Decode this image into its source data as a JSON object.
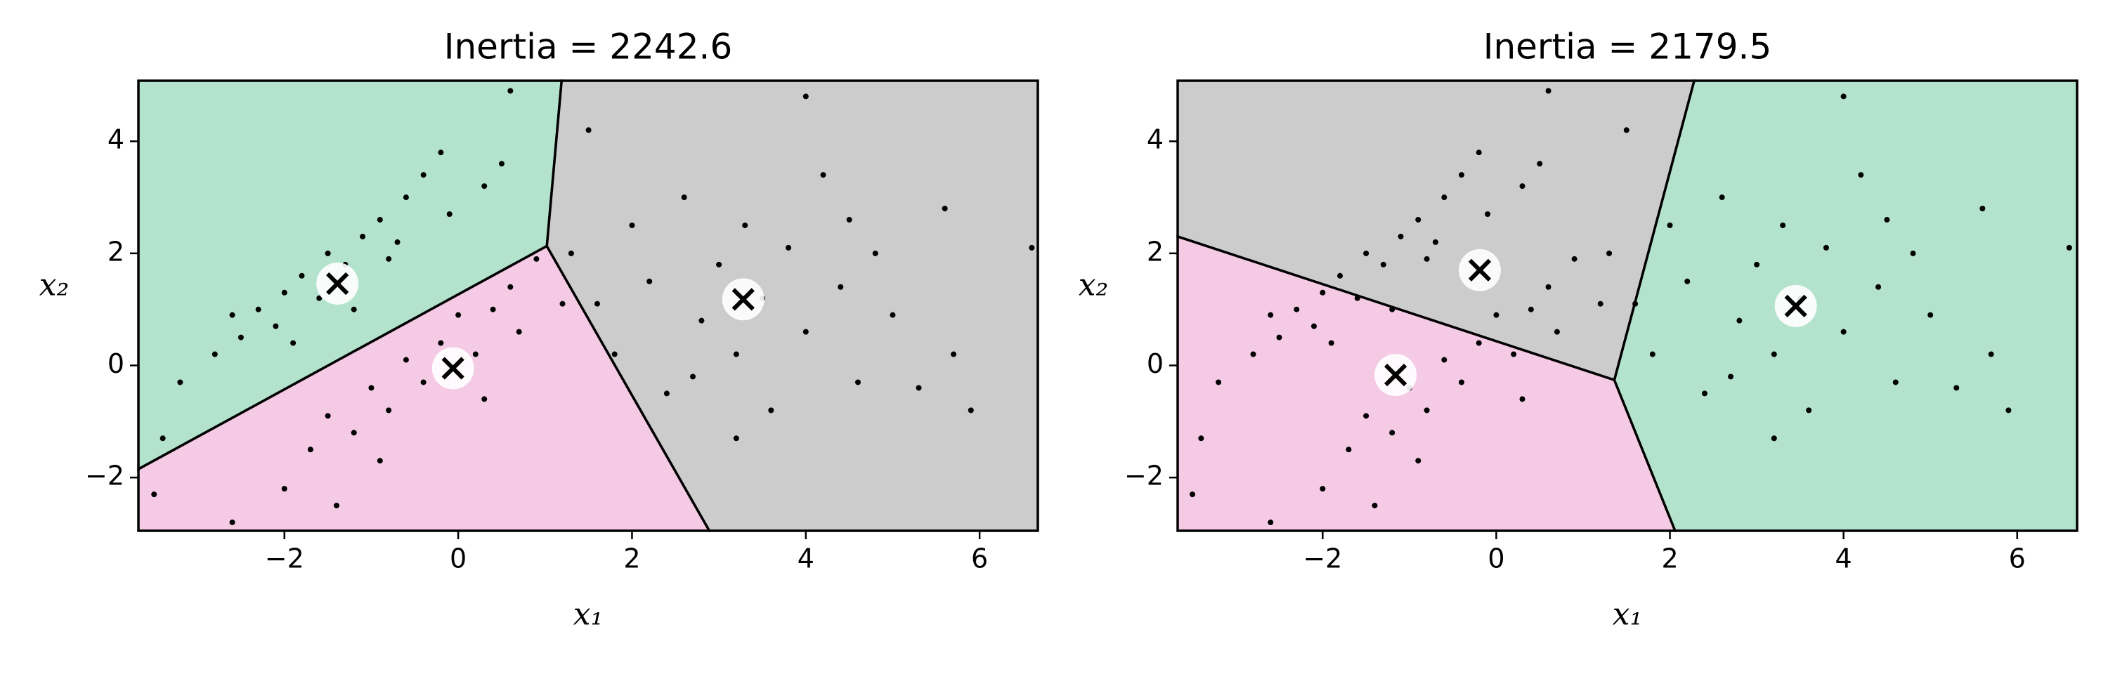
{
  "chart_data": [
    {
      "type": "scatter",
      "title": "Inertia = 2242.6",
      "xlabel": "x₁",
      "ylabel": "x₂",
      "xlim": [
        -3.68,
        6.67
      ],
      "ylim": [
        -2.95,
        5.08
      ],
      "xticks": [
        {
          "value": -2,
          "label": "−2"
        },
        0,
        2,
        4,
        6
      ],
      "yticks": [
        {
          "value": -2,
          "label": "−2"
        },
        0,
        2,
        4
      ],
      "regions": [
        {
          "color": "#b3e2cd",
          "polygon": [
            [
              -3.68,
              5.08
            ],
            [
              1.19,
              5.08
            ],
            [
              1.02,
              2.13
            ],
            [
              -3.68,
              -1.85
            ]
          ]
        },
        {
          "color": "#f4cae4",
          "polygon": [
            [
              -3.68,
              -1.85
            ],
            [
              1.02,
              2.13
            ],
            [
              2.89,
              -2.95
            ],
            [
              -3.68,
              -2.95
            ]
          ]
        },
        {
          "color": "#cccccc",
          "polygon": [
            [
              1.19,
              5.08
            ],
            [
              6.67,
              5.08
            ],
            [
              6.67,
              -2.95
            ],
            [
              2.89,
              -2.95
            ],
            [
              1.02,
              2.13
            ]
          ]
        }
      ],
      "points": {
        "color": "#000000",
        "x": [
          -3.2,
          -2.8,
          -2.5,
          -2.3,
          -2.1,
          -2.0,
          -1.8,
          -1.6,
          -1.5,
          -1.3,
          -1.1,
          -0.9,
          -0.7,
          -0.6,
          -0.4,
          -0.2,
          0.3,
          0.5,
          -2.6,
          -1.9,
          -1.2,
          -0.8,
          -3.4,
          -0.1,
          0.6,
          -2.6,
          -2.0,
          -1.7,
          -1.5,
          -1.2,
          -1.0,
          -0.8,
          -0.6,
          -0.4,
          -0.2,
          0.0,
          0.2,
          0.4,
          0.6,
          0.7,
          0.9,
          -1.4,
          -0.9,
          0.3,
          1.2,
          -3.5,
          1.3,
          1.6,
          1.8,
          2.0,
          2.2,
          2.4,
          2.6,
          2.8,
          3.0,
          3.2,
          3.3,
          3.5,
          3.6,
          3.8,
          4.0,
          4.2,
          4.4,
          4.6,
          4.8,
          5.0,
          5.3,
          5.6,
          5.7,
          5.9,
          6.6,
          4.0,
          1.5,
          3.2,
          2.7,
          4.5
        ],
        "y": [
          -0.3,
          0.2,
          0.5,
          1.0,
          0.7,
          1.3,
          1.6,
          1.2,
          2.0,
          1.8,
          2.3,
          2.6,
          2.2,
          3.0,
          3.4,
          3.8,
          3.2,
          3.6,
          0.9,
          0.4,
          1.0,
          1.9,
          -1.3,
          2.7,
          4.9,
          -2.8,
          -2.2,
          -1.5,
          -0.9,
          -1.2,
          -0.4,
          -0.8,
          0.1,
          -0.3,
          0.4,
          0.9,
          0.2,
          1.0,
          1.4,
          0.6,
          1.9,
          -2.5,
          -1.7,
          -0.6,
          1.1,
          -2.3,
          2.0,
          1.1,
          0.2,
          2.5,
          1.5,
          -0.5,
          3.0,
          0.8,
          1.8,
          0.2,
          2.5,
          1.2,
          -0.8,
          2.1,
          0.6,
          3.4,
          1.4,
          -0.3,
          2.0,
          0.9,
          -0.4,
          2.8,
          0.2,
          -0.8,
          2.1,
          4.8,
          4.2,
          -1.3,
          -0.2,
          2.6
        ]
      },
      "centroids": {
        "x": [
          -1.39,
          -0.06,
          3.28
        ],
        "y": [
          1.46,
          -0.05,
          1.18
        ]
      }
    },
    {
      "type": "scatter",
      "title": "Inertia = 2179.5",
      "xlabel": "x₁",
      "ylabel": "x₂",
      "xlim": [
        -3.67,
        6.69
      ],
      "ylim": [
        -2.95,
        5.08
      ],
      "xticks": [
        {
          "value": -2,
          "label": "−2"
        },
        0,
        2,
        4,
        6
      ],
      "yticks": [
        {
          "value": -2,
          "label": "−2"
        },
        0,
        2,
        4
      ],
      "regions": [
        {
          "color": "#cccccc",
          "polygon": [
            [
              -3.67,
              5.08
            ],
            [
              2.28,
              5.08
            ],
            [
              1.36,
              -0.26
            ],
            [
              -3.67,
              2.3
            ]
          ]
        },
        {
          "color": "#f4cae4",
          "polygon": [
            [
              -3.67,
              2.3
            ],
            [
              1.36,
              -0.26
            ],
            [
              2.06,
              -2.95
            ],
            [
              -3.67,
              -2.95
            ]
          ]
        },
        {
          "color": "#b3e2cd",
          "polygon": [
            [
              2.28,
              5.08
            ],
            [
              6.69,
              5.08
            ],
            [
              6.69,
              -2.95
            ],
            [
              2.06,
              -2.95
            ],
            [
              1.36,
              -0.26
            ]
          ]
        }
      ],
      "points": {
        "color": "#000000",
        "x": [
          -3.2,
          -2.8,
          -2.5,
          -2.3,
          -2.1,
          -2.0,
          -1.8,
          -1.6,
          -1.5,
          -1.3,
          -1.1,
          -0.9,
          -0.7,
          -0.6,
          -0.4,
          -0.2,
          0.3,
          0.5,
          -2.6,
          -1.9,
          -1.2,
          -0.8,
          -3.4,
          -0.1,
          0.6,
          -2.6,
          -2.0,
          -1.7,
          -1.5,
          -1.2,
          -1.0,
          -0.8,
          -0.6,
          -0.4,
          -0.2,
          0.0,
          0.2,
          0.4,
          0.6,
          0.7,
          0.9,
          -1.4,
          -0.9,
          0.3,
          1.2,
          -3.5,
          1.3,
          1.6,
          1.8,
          2.0,
          2.2,
          2.4,
          2.6,
          2.8,
          3.0,
          3.2,
          3.3,
          3.5,
          3.6,
          3.8,
          4.0,
          4.2,
          4.4,
          4.6,
          4.8,
          5.0,
          5.3,
          5.6,
          5.7,
          5.9,
          6.6,
          4.0,
          1.5,
          3.2,
          2.7,
          4.5
        ],
        "y": [
          -0.3,
          0.2,
          0.5,
          1.0,
          0.7,
          1.3,
          1.6,
          1.2,
          2.0,
          1.8,
          2.3,
          2.6,
          2.2,
          3.0,
          3.4,
          3.8,
          3.2,
          3.6,
          0.9,
          0.4,
          1.0,
          1.9,
          -1.3,
          2.7,
          4.9,
          -2.8,
          -2.2,
          -1.5,
          -0.9,
          -1.2,
          -0.4,
          -0.8,
          0.1,
          -0.3,
          0.4,
          0.9,
          0.2,
          1.0,
          1.4,
          0.6,
          1.9,
          -2.5,
          -1.7,
          -0.6,
          1.1,
          -2.3,
          2.0,
          1.1,
          0.2,
          2.5,
          1.5,
          -0.5,
          3.0,
          0.8,
          1.8,
          0.2,
          2.5,
          1.2,
          -0.8,
          2.1,
          0.6,
          3.4,
          1.4,
          -0.3,
          2.0,
          0.9,
          -0.4,
          2.8,
          0.2,
          -0.8,
          2.1,
          4.8,
          4.2,
          -1.3,
          -0.2,
          2.6
        ]
      },
      "centroids": {
        "x": [
          -0.19,
          -1.16,
          3.45
        ],
        "y": [
          1.7,
          -0.17,
          1.06
        ]
      }
    }
  ]
}
